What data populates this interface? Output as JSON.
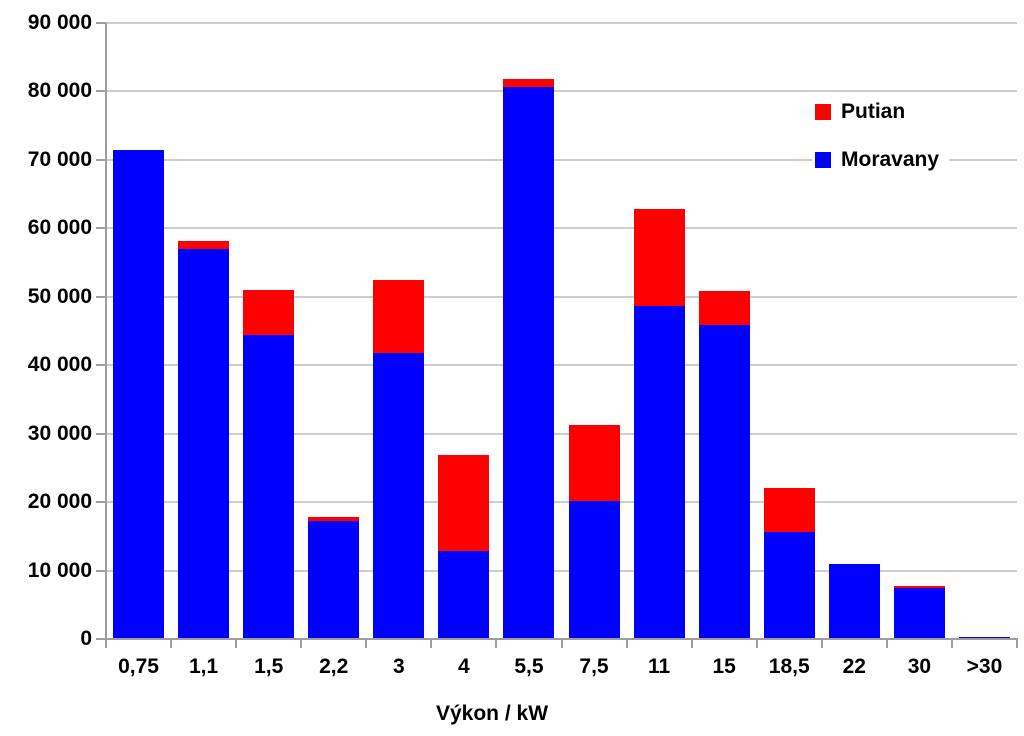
{
  "chart_data": {
    "type": "bar",
    "stacked": true,
    "title": "",
    "xlabel": "Výkon / kW",
    "ylabel": "",
    "ylim": [
      0,
      90000
    ],
    "grid": true,
    "categories": [
      "0,75",
      "1,1",
      "1,5",
      "2,2",
      "3",
      "4",
      "5,5",
      "7,5",
      "11",
      "15",
      "18,5",
      "22",
      "30",
      ">30"
    ],
    "series": [
      {
        "name": "Moravany",
        "color": "#0000fe",
        "values": [
          71400,
          57000,
          44400,
          17200,
          41800,
          12900,
          80600,
          20100,
          48700,
          45900,
          15600,
          10900,
          7500,
          300
        ]
      },
      {
        "name": "Putian",
        "color": "#fe0000",
        "values": [
          0,
          1100,
          6600,
          600,
          10600,
          14000,
          1200,
          11100,
          14100,
          5000,
          6400,
          0,
          300,
          0
        ]
      }
    ],
    "ytick_labels": [
      "0",
      "10 000",
      "20 000",
      "30 000",
      "40 000",
      "50 000",
      "60 000",
      "70 000",
      "80 000",
      "90 000"
    ],
    "legend": {
      "position": "top-right",
      "entries": [
        {
          "label": "Putian",
          "color": "#fe0000"
        },
        {
          "label": "Moravany",
          "color": "#0000fe"
        }
      ]
    }
  }
}
